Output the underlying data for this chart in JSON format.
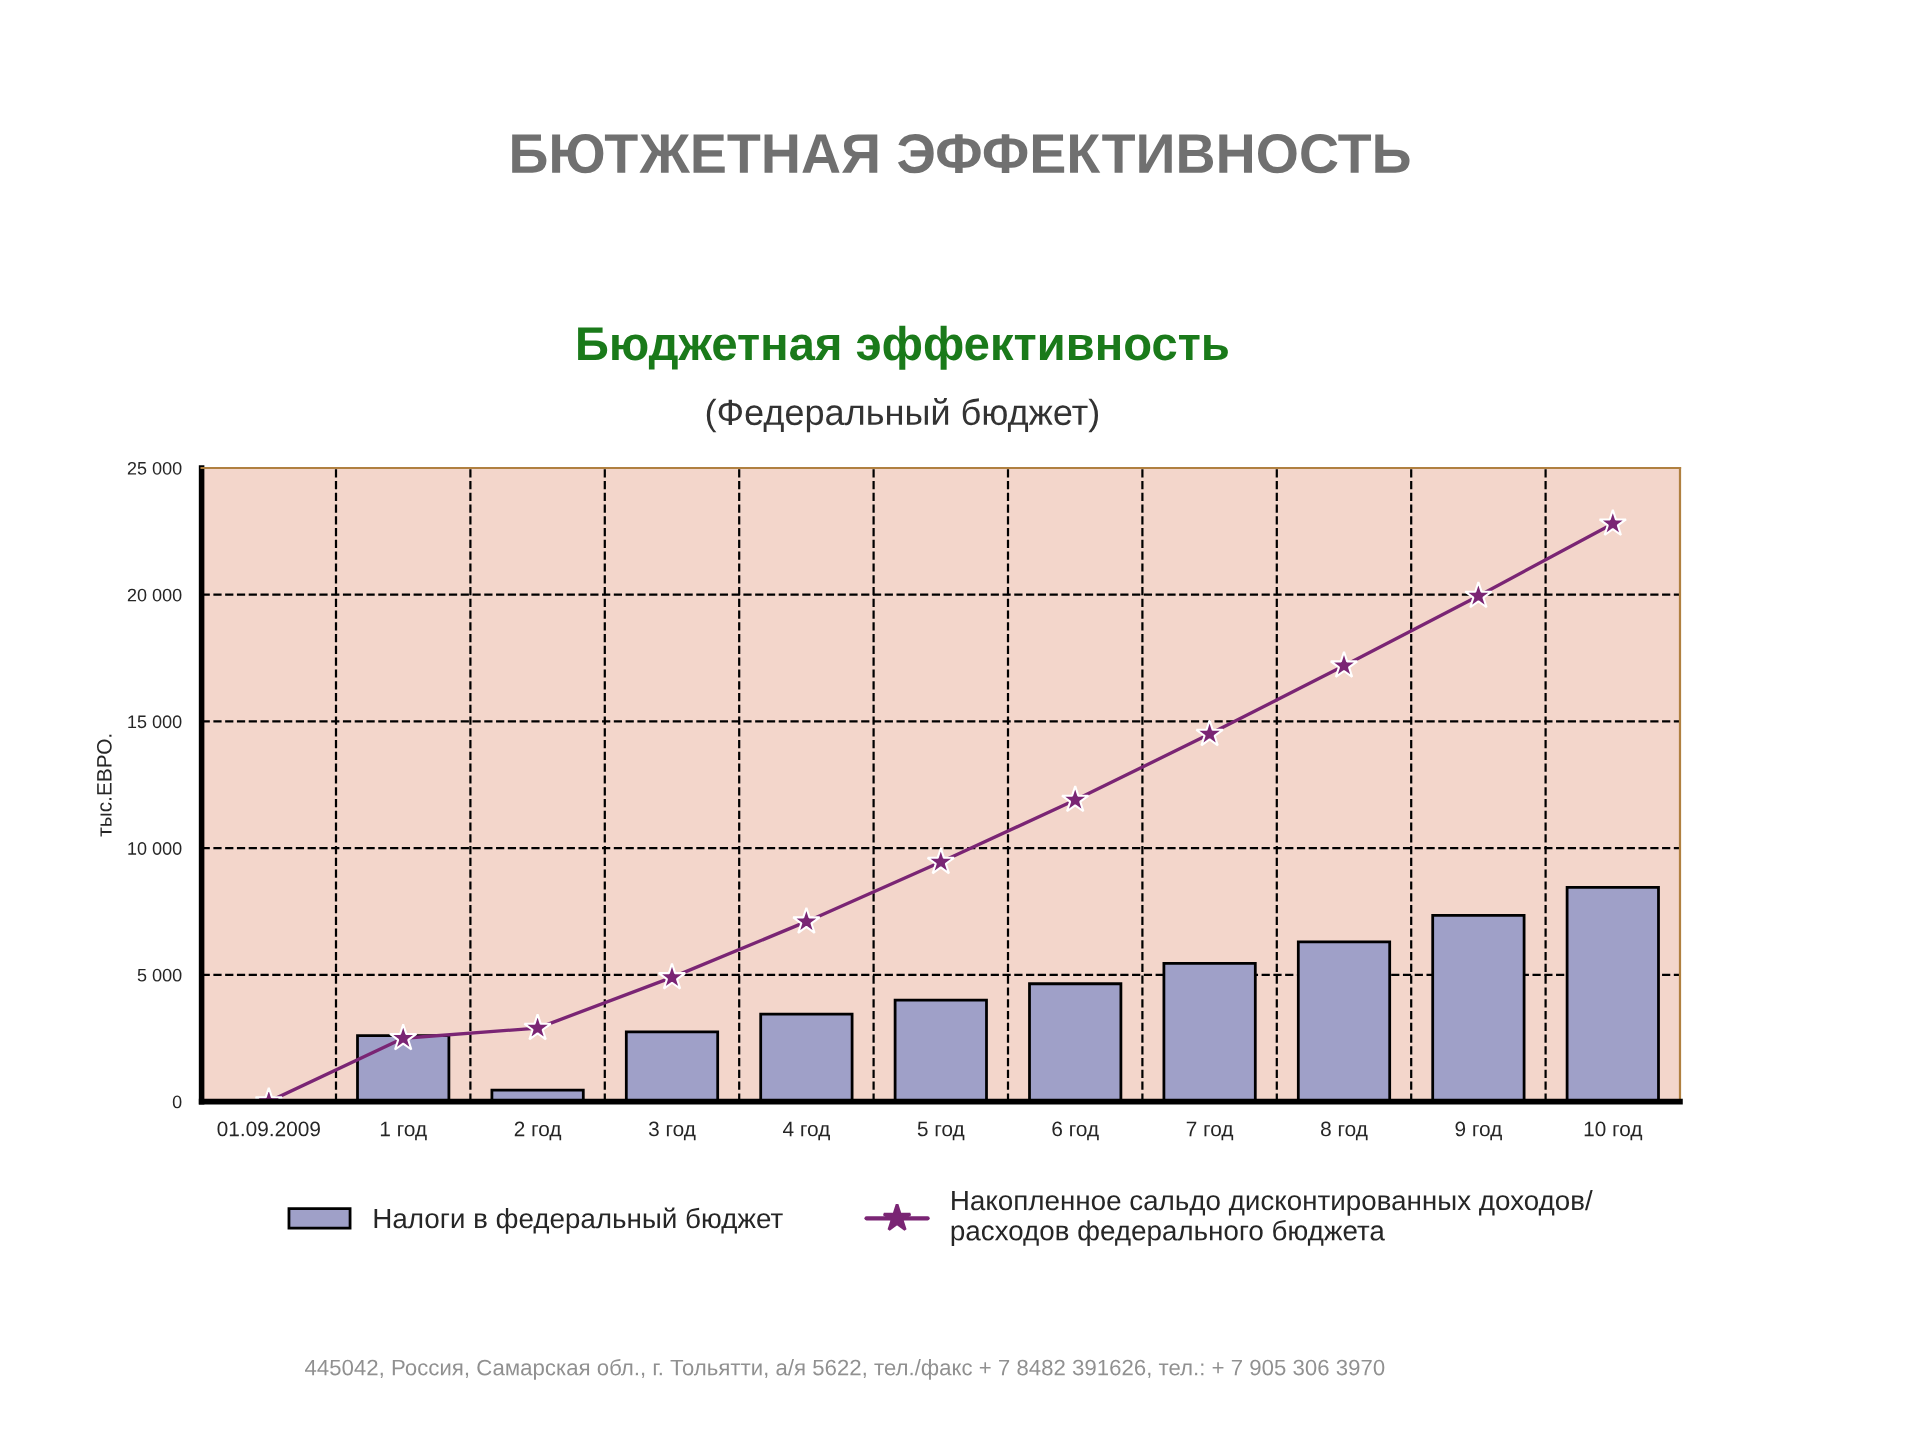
{
  "chart_data": {
    "type": "bar",
    "title": "Бюджетная эффективность",
    "subtitle": "(Федеральный бюджет)",
    "ylabel": "тыс.ЕВРО.",
    "annotations": [
      "БЮТЖЕТНАЯ ЭФФЕКТИВНОСТЬ",
      "445042, Россия, Самарская обл., г. Тольятти, а/я 5622, тел./факс + 7 8482 391626, тел.: + 7 905 306 3970"
    ],
    "categories": [
      "01.09.2009",
      "1 год",
      "2 год",
      "3 год",
      "4 год",
      "5 год",
      "6 год",
      "7 год",
      "8 год",
      "9 год",
      "10 год"
    ],
    "series": [
      {
        "name": "Налоги в федеральный бюджет",
        "color": "#9fa0c8",
        "values": [
          null,
          2600,
          450,
          2750,
          3450,
          4000,
          4650,
          5450,
          6300,
          7350,
          8450
        ]
      },
      {
        "name": "Накопленное сальдо дисконтированных доходов/\nрасходов федерального бюджета",
        "type": "line",
        "color": "#7a2574",
        "marker": "star",
        "values": [
          0,
          2500,
          2900,
          4900,
          7100,
          9450,
          11900,
          14500,
          17200,
          19950,
          22800
        ]
      }
    ],
    "ylim": [
      0,
      25000
    ],
    "yticks": [
      {
        "value": 0,
        "label": "0"
      },
      {
        "value": 5000,
        "label": "5 000"
      },
      {
        "value": 10000,
        "label": "10 000"
      },
      {
        "value": 15000,
        "label": "15 000"
      },
      {
        "value": 20000,
        "label": "20 000"
      },
      {
        "value": 25000,
        "label": "25 000"
      }
    ],
    "grid": true,
    "legend": "bottom"
  }
}
